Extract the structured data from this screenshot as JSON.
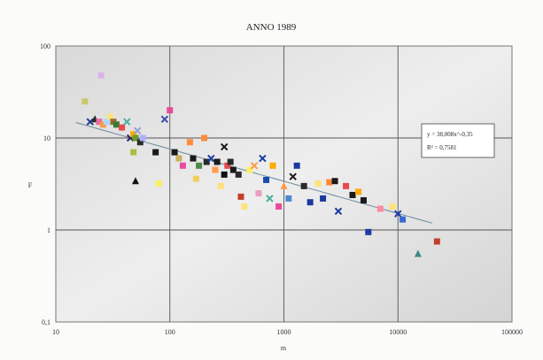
{
  "chart_data": {
    "type": "scatter",
    "title": "ANNO 1989",
    "xlabel": "m",
    "ylabel": "F",
    "x_scale": "log",
    "y_scale": "log",
    "xlim": [
      10,
      100000
    ],
    "ylim": [
      0.1,
      100
    ],
    "x_ticks": [
      "10",
      "100",
      "1000",
      "10000",
      "100000"
    ],
    "y_ticks": [
      "100",
      "10",
      "1",
      "0,1"
    ],
    "grid": true,
    "trendline": {
      "type": "power",
      "coef": 38.008,
      "exponent": -0.35,
      "equation_label": "y = 38,008x^-0,35",
      "r2_label": "R² = 0,7581"
    },
    "points": [
      {
        "x": 25,
        "y": 48,
        "c": "#d8b4e8",
        "m": "sq"
      },
      {
        "x": 18,
        "y": 25,
        "c": "#c9c96a",
        "m": "sq"
      },
      {
        "x": 20,
        "y": 15,
        "c": "#1f3a8a",
        "m": "x"
      },
      {
        "x": 22,
        "y": 16,
        "c": "#2a2a2a",
        "m": "tri"
      },
      {
        "x": 24,
        "y": 15,
        "c": "#e86aa0",
        "m": "sq"
      },
      {
        "x": 26,
        "y": 14,
        "c": "#ff9a4a",
        "m": "sq"
      },
      {
        "x": 28,
        "y": 15,
        "c": "#a8d8ff",
        "m": "sq"
      },
      {
        "x": 30,
        "y": 17,
        "c": "#ffe27a",
        "m": "sq"
      },
      {
        "x": 32,
        "y": 15,
        "c": "#9a6a2a",
        "m": "sq"
      },
      {
        "x": 34,
        "y": 14,
        "c": "#3a7a3a",
        "m": "sq"
      },
      {
        "x": 38,
        "y": 13,
        "c": "#e84a4a",
        "m": "sq"
      },
      {
        "x": 42,
        "y": 15,
        "c": "#4ab0a0",
        "m": "x"
      },
      {
        "x": 45,
        "y": 10,
        "c": "#2a2a6a",
        "m": "x"
      },
      {
        "x": 48,
        "y": 11,
        "c": "#ffaa00",
        "m": "sq"
      },
      {
        "x": 50,
        "y": 10,
        "c": "#6a9a2a",
        "m": "sq"
      },
      {
        "x": 52,
        "y": 12,
        "c": "#9aa0d8",
        "m": "x"
      },
      {
        "x": 55,
        "y": 9,
        "c": "#2a2a2a",
        "m": "sq"
      },
      {
        "x": 58,
        "y": 10,
        "c": "#b0b0ff",
        "m": "sq"
      },
      {
        "x": 48,
        "y": 7,
        "c": "#a8c040",
        "m": "sq"
      },
      {
        "x": 50,
        "y": 3.4,
        "c": "#111111",
        "m": "tri"
      },
      {
        "x": 75,
        "y": 7,
        "c": "#1a1a1a",
        "m": "sq"
      },
      {
        "x": 80,
        "y": 3.2,
        "c": "#f8f060",
        "m": "sq"
      },
      {
        "x": 90,
        "y": 16,
        "c": "#3a4ab0",
        "m": "x"
      },
      {
        "x": 100,
        "y": 20,
        "c": "#e84a9a",
        "m": "sq"
      },
      {
        "x": 110,
        "y": 7,
        "c": "#1a1a1a",
        "m": "sq"
      },
      {
        "x": 120,
        "y": 6,
        "c": "#c9b060",
        "m": "sq"
      },
      {
        "x": 130,
        "y": 5,
        "c": "#e84aa0",
        "m": "sq"
      },
      {
        "x": 150,
        "y": 9,
        "c": "#ff8a3a",
        "m": "sq"
      },
      {
        "x": 160,
        "y": 6,
        "c": "#1a1a1a",
        "m": "sq"
      },
      {
        "x": 170,
        "y": 3.6,
        "c": "#f0d060",
        "m": "sq"
      },
      {
        "x": 180,
        "y": 5,
        "c": "#4a8a4a",
        "m": "sq"
      },
      {
        "x": 200,
        "y": 10,
        "c": "#ff8a3a",
        "m": "sq"
      },
      {
        "x": 210,
        "y": 5.5,
        "c": "#2a2a2a",
        "m": "sq"
      },
      {
        "x": 230,
        "y": 6,
        "c": "#1a3aa0",
        "m": "x"
      },
      {
        "x": 250,
        "y": 4.5,
        "c": "#ff9a4a",
        "m": "sq"
      },
      {
        "x": 260,
        "y": 5.5,
        "c": "#1a1a1a",
        "m": "sq"
      },
      {
        "x": 280,
        "y": 3,
        "c": "#ffe27a",
        "m": "sq"
      },
      {
        "x": 300,
        "y": 8,
        "c": "#1a1a1a",
        "m": "x"
      },
      {
        "x": 300,
        "y": 4,
        "c": "#111111",
        "m": "sq"
      },
      {
        "x": 320,
        "y": 5,
        "c": "#e84a4a",
        "m": "sq"
      },
      {
        "x": 340,
        "y": 5.5,
        "c": "#2a2a2a",
        "m": "sq"
      },
      {
        "x": 360,
        "y": 4.5,
        "c": "#1a1a1a",
        "m": "sq"
      },
      {
        "x": 400,
        "y": 4,
        "c": "#2a2a2a",
        "m": "sq"
      },
      {
        "x": 420,
        "y": 2.3,
        "c": "#c0402a",
        "m": "sq"
      },
      {
        "x": 450,
        "y": 1.8,
        "c": "#ffe27a",
        "m": "sq"
      },
      {
        "x": 500,
        "y": 4.5,
        "c": "#f8f060",
        "m": "sq"
      },
      {
        "x": 550,
        "y": 5,
        "c": "#ff9a4a",
        "m": "x"
      },
      {
        "x": 600,
        "y": 2.5,
        "c": "#e8a0c0",
        "m": "sq"
      },
      {
        "x": 650,
        "y": 6,
        "c": "#1a3aa0",
        "m": "x"
      },
      {
        "x": 700,
        "y": 3.5,
        "c": "#1a4ab0",
        "m": "sq"
      },
      {
        "x": 750,
        "y": 2.2,
        "c": "#4ab0a0",
        "m": "x"
      },
      {
        "x": 800,
        "y": 5,
        "c": "#ffaa00",
        "m": "sq"
      },
      {
        "x": 900,
        "y": 1.8,
        "c": "#e84a9a",
        "m": "sq"
      },
      {
        "x": 1000,
        "y": 3,
        "c": "#ff9a4a",
        "m": "tri"
      },
      {
        "x": 1100,
        "y": 2.2,
        "c": "#4a8ad0",
        "m": "sq"
      },
      {
        "x": 1200,
        "y": 3.8,
        "c": "#1a1a1a",
        "m": "x"
      },
      {
        "x": 1300,
        "y": 5,
        "c": "#1a3aa0",
        "m": "sq"
      },
      {
        "x": 1500,
        "y": 3,
        "c": "#2a2a2a",
        "m": "sq"
      },
      {
        "x": 1700,
        "y": 2,
        "c": "#1a3aa0",
        "m": "sq"
      },
      {
        "x": 2000,
        "y": 3.2,
        "c": "#ffe27a",
        "m": "sq"
      },
      {
        "x": 2200,
        "y": 2.2,
        "c": "#1a3aa0",
        "m": "sq"
      },
      {
        "x": 2500,
        "y": 3.3,
        "c": "#ff8a3a",
        "m": "sq"
      },
      {
        "x": 2800,
        "y": 3.4,
        "c": "#1a1a1a",
        "m": "sq"
      },
      {
        "x": 3000,
        "y": 1.6,
        "c": "#1a3aa0",
        "m": "x"
      },
      {
        "x": 3500,
        "y": 3,
        "c": "#e84a4a",
        "m": "sq"
      },
      {
        "x": 4000,
        "y": 2.4,
        "c": "#1a1a1a",
        "m": "sq"
      },
      {
        "x": 4500,
        "y": 2.6,
        "c": "#ffaa00",
        "m": "sq"
      },
      {
        "x": 5000,
        "y": 2.1,
        "c": "#1a1a1a",
        "m": "sq"
      },
      {
        "x": 5500,
        "y": 0.95,
        "c": "#1a3aa0",
        "m": "sq"
      },
      {
        "x": 7000,
        "y": 1.7,
        "c": "#ff8aa0",
        "m": "sq"
      },
      {
        "x": 9000,
        "y": 1.8,
        "c": "#ffe27a",
        "m": "sq"
      },
      {
        "x": 10000,
        "y": 1.5,
        "c": "#1a3aa0",
        "m": "x"
      },
      {
        "x": 11000,
        "y": 1.3,
        "c": "#3a6ad0",
        "m": "sq"
      },
      {
        "x": 15000,
        "y": 0.55,
        "c": "#3a8a8a",
        "m": "tri"
      },
      {
        "x": 22000,
        "y": 0.75,
        "c": "#c0402a",
        "m": "sq"
      }
    ]
  }
}
